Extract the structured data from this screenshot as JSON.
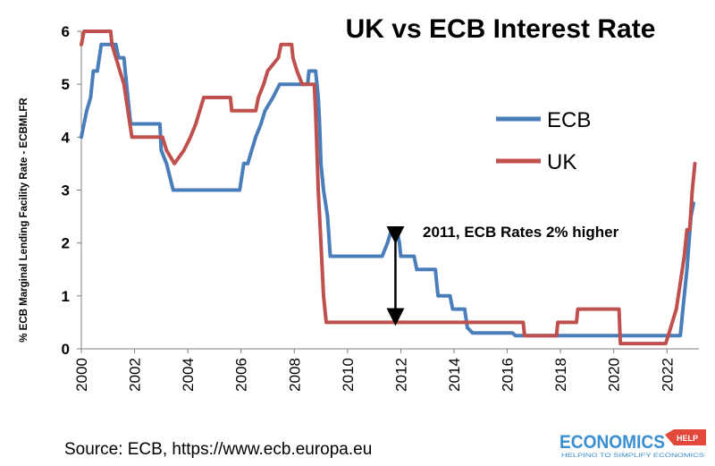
{
  "chart_data": {
    "type": "line",
    "title": "UK vs ECB Interest Rate",
    "ylabel": "% ECB Marginal Lending Facility Rate - ECBMLFR",
    "xlabel": "",
    "ylim": [
      0,
      6
    ],
    "xlim": [
      2000,
      2023.2
    ],
    "yticks": [
      0,
      1,
      2,
      3,
      4,
      5,
      6
    ],
    "xticks": [
      "2000",
      "2002",
      "2004",
      "2006",
      "2008",
      "2010",
      "2012",
      "2014",
      "2016",
      "2018",
      "2020",
      "2022"
    ],
    "grid": false,
    "legend": "right",
    "series": [
      {
        "name": "ECB",
        "color": "#4a7ebb",
        "points": [
          [
            2000.0,
            4.0
          ],
          [
            2000.1,
            4.25
          ],
          [
            2000.2,
            4.5
          ],
          [
            2000.35,
            4.75
          ],
          [
            2000.45,
            5.25
          ],
          [
            2000.6,
            5.25
          ],
          [
            2000.75,
            5.75
          ],
          [
            2001.3,
            5.75
          ],
          [
            2001.4,
            5.5
          ],
          [
            2001.6,
            5.5
          ],
          [
            2001.65,
            5.25
          ],
          [
            2001.75,
            4.75
          ],
          [
            2001.85,
            4.25
          ],
          [
            2002.95,
            4.25
          ],
          [
            2003.0,
            3.75
          ],
          [
            2003.2,
            3.5
          ],
          [
            2003.45,
            3.0
          ],
          [
            2005.95,
            3.0
          ],
          [
            2006.1,
            3.5
          ],
          [
            2006.25,
            3.5
          ],
          [
            2006.4,
            3.75
          ],
          [
            2006.55,
            4.0
          ],
          [
            2006.75,
            4.25
          ],
          [
            2006.9,
            4.5
          ],
          [
            2007.2,
            4.75
          ],
          [
            2007.45,
            5.0
          ],
          [
            2008.5,
            5.0
          ],
          [
            2008.55,
            5.25
          ],
          [
            2008.8,
            5.25
          ],
          [
            2008.9,
            4.75
          ],
          [
            2008.95,
            4.25
          ],
          [
            2009.0,
            3.5
          ],
          [
            2009.1,
            3.0
          ],
          [
            2009.25,
            2.5
          ],
          [
            2009.35,
            1.75
          ],
          [
            2011.3,
            1.75
          ],
          [
            2011.5,
            2.0
          ],
          [
            2011.65,
            2.25
          ],
          [
            2011.85,
            2.25
          ],
          [
            2011.95,
            2.0
          ],
          [
            2012.0,
            1.75
          ],
          [
            2012.5,
            1.75
          ],
          [
            2012.6,
            1.5
          ],
          [
            2013.3,
            1.5
          ],
          [
            2013.4,
            1.0
          ],
          [
            2013.85,
            1.0
          ],
          [
            2013.95,
            0.75
          ],
          [
            2014.4,
            0.75
          ],
          [
            2014.5,
            0.4
          ],
          [
            2014.7,
            0.3
          ],
          [
            2016.2,
            0.3
          ],
          [
            2016.3,
            0.25
          ],
          [
            2022.5,
            0.25
          ],
          [
            2022.6,
            0.75
          ],
          [
            2022.75,
            1.5
          ],
          [
            2022.9,
            2.5
          ],
          [
            2023.0,
            2.75
          ]
        ]
      },
      {
        "name": "UK",
        "color": "#c0504d",
        "points": [
          [
            2000.0,
            5.75
          ],
          [
            2000.1,
            6.0
          ],
          [
            2001.1,
            6.0
          ],
          [
            2001.15,
            5.75
          ],
          [
            2001.3,
            5.5
          ],
          [
            2001.45,
            5.25
          ],
          [
            2001.6,
            5.0
          ],
          [
            2001.75,
            4.5
          ],
          [
            2001.9,
            4.0
          ],
          [
            2003.05,
            4.0
          ],
          [
            2003.2,
            3.75
          ],
          [
            2003.5,
            3.5
          ],
          [
            2003.85,
            3.75
          ],
          [
            2004.1,
            4.0
          ],
          [
            2004.3,
            4.25
          ],
          [
            2004.45,
            4.5
          ],
          [
            2004.6,
            4.75
          ],
          [
            2005.6,
            4.75
          ],
          [
            2005.65,
            4.5
          ],
          [
            2006.55,
            4.5
          ],
          [
            2006.65,
            4.75
          ],
          [
            2006.85,
            5.0
          ],
          [
            2007.0,
            5.25
          ],
          [
            2007.4,
            5.5
          ],
          [
            2007.5,
            5.75
          ],
          [
            2007.9,
            5.75
          ],
          [
            2007.95,
            5.5
          ],
          [
            2008.1,
            5.25
          ],
          [
            2008.3,
            5.0
          ],
          [
            2008.75,
            5.0
          ],
          [
            2008.8,
            4.5
          ],
          [
            2008.9,
            3.0
          ],
          [
            2009.0,
            2.0
          ],
          [
            2009.1,
            1.0
          ],
          [
            2009.2,
            0.5
          ],
          [
            2016.6,
            0.5
          ],
          [
            2016.65,
            0.25
          ],
          [
            2017.85,
            0.25
          ],
          [
            2017.9,
            0.5
          ],
          [
            2018.6,
            0.5
          ],
          [
            2018.65,
            0.75
          ],
          [
            2020.2,
            0.75
          ],
          [
            2020.25,
            0.1
          ],
          [
            2021.95,
            0.1
          ],
          [
            2022.05,
            0.25
          ],
          [
            2022.2,
            0.5
          ],
          [
            2022.35,
            0.75
          ],
          [
            2022.5,
            1.25
          ],
          [
            2022.65,
            1.75
          ],
          [
            2022.75,
            2.25
          ],
          [
            2022.85,
            2.25
          ],
          [
            2022.95,
            3.0
          ],
          [
            2023.05,
            3.5
          ]
        ]
      }
    ],
    "annotation": {
      "text": "2011, ECB Rates 2% higher",
      "arrow_x": 2011.8,
      "arrow_from": 2.25,
      "arrow_to": 0.5
    }
  },
  "source": "Source: ECB, https://www.ecb.europa.eu",
  "logo": {
    "brand": "ECONOMICS",
    "badge": "HELP",
    "tagline": "HELPING TO SIMPLIFY ECONOMICS"
  }
}
